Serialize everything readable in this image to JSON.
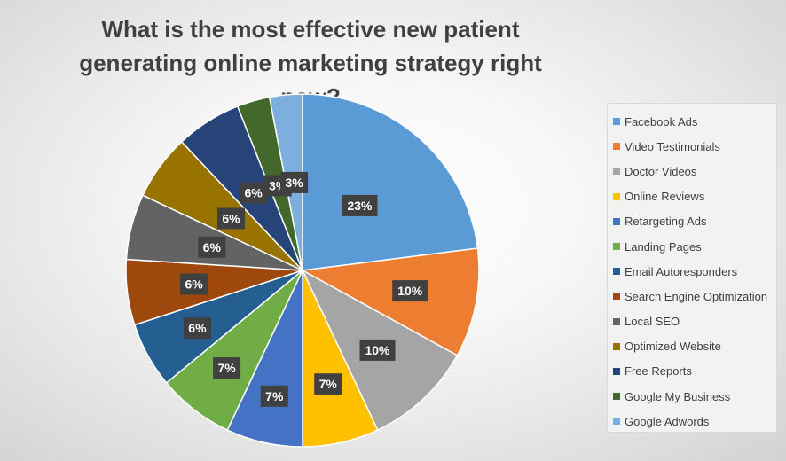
{
  "chart_data": {
    "type": "pie",
    "title": "What is the most effective new patient generating online marketing strategy right now?",
    "categories": [
      "Facebook Ads",
      "Video Testimonials",
      "Doctor Videos",
      "Online Reviews",
      "Retargeting Ads",
      "Landing Pages",
      "Email Autoresponders",
      "Search Engine Optimization",
      "Local SEO",
      "Optimized Website",
      "Free Reports",
      "Google My Business",
      "Google Adwords"
    ],
    "values": [
      23,
      10,
      10,
      7,
      7,
      7,
      6,
      6,
      6,
      6,
      6,
      3,
      3
    ],
    "data_labels": [
      "23%",
      "10%",
      "10%",
      "7%",
      "7%",
      "7%",
      "6%",
      "6%",
      "6%",
      "6%",
      "6%",
      "3%",
      "3%"
    ],
    "colors": [
      "#5b9bd5",
      "#ed7d31",
      "#a5a5a5",
      "#ffc000",
      "#4472c4",
      "#70ad47",
      "#255e91",
      "#9e480e",
      "#636363",
      "#997300",
      "#264478",
      "#43682b",
      "#7cafdd"
    ],
    "legend_position": "right"
  }
}
